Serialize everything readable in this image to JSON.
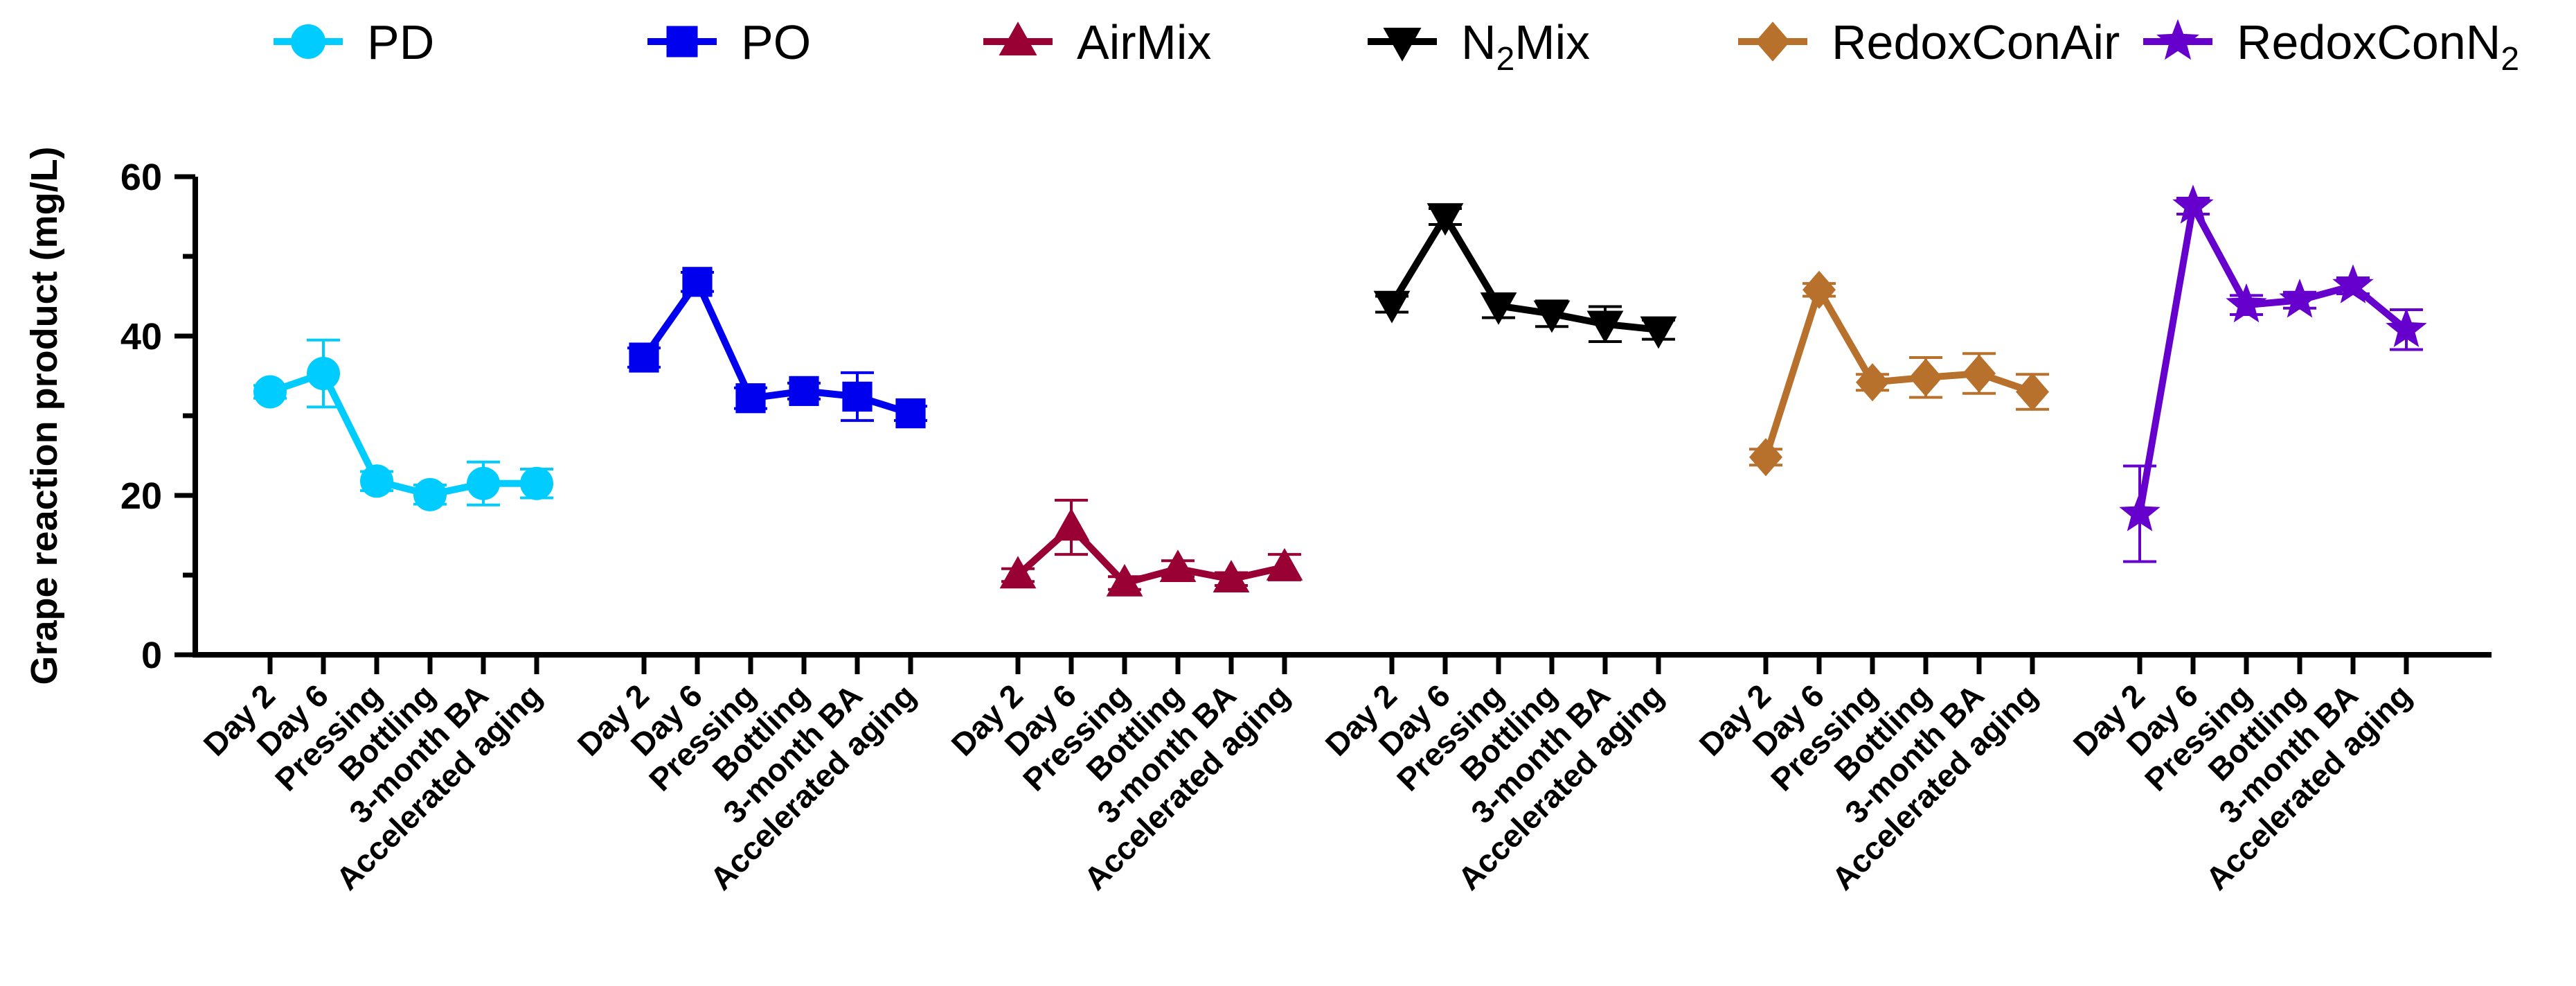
{
  "chart_data": {
    "type": "line",
    "ylabel": "Grape reaction product (mg/L)",
    "ylim": [
      0,
      60
    ],
    "y_ticks": [
      "0",
      "20",
      "40",
      "60"
    ],
    "grid": false,
    "legend_position": "top",
    "categories": [
      "Day 2",
      "Day 6",
      "Pressing",
      "Bottling",
      "3-month BA",
      "Accelerated aging"
    ],
    "series": [
      {
        "name": "PD",
        "label_main": "PD",
        "label_sub": "",
        "label_tail": "",
        "color": "#00CCFF",
        "marker": "circle",
        "values": [
          33,
          35.3,
          21.8,
          20.1,
          21.5,
          21.5
        ],
        "errors": [
          0.8,
          4.2,
          1.2,
          1.2,
          2.7,
          1.8
        ]
      },
      {
        "name": "PO",
        "label_main": "PO",
        "label_sub": "",
        "label_tail": "",
        "color": "#0000EE",
        "marker": "square",
        "values": [
          37.3,
          46.8,
          32.2,
          33.1,
          32.4,
          30.3
        ],
        "errors": [
          1.2,
          1.2,
          1.3,
          1.0,
          3.0,
          0.9
        ]
      },
      {
        "name": "AirMix",
        "label_main": "AirMix",
        "label_sub": "",
        "label_tail": "",
        "color": "#990033",
        "marker": "triangle-up",
        "values": [
          10,
          16,
          9,
          10.8,
          9.5,
          11
        ],
        "errors": [
          0.8,
          3.4,
          0.8,
          1.0,
          0.8,
          1.6
        ]
      },
      {
        "name": "N2Mix",
        "label_main": "N",
        "label_sub": "2",
        "label_tail": "Mix",
        "color": "#000000",
        "marker": "triangle-down",
        "values": [
          44,
          55,
          43.8,
          42.8,
          41.5,
          40.8
        ],
        "errors": [
          1.0,
          1.0,
          1.5,
          1.6,
          2.2,
          1.2
        ]
      },
      {
        "name": "RedoxConAir",
        "label_main": "RedoxConAir",
        "label_sub": "",
        "label_tail": "",
        "color": "#B8702D",
        "marker": "diamond",
        "values": [
          24.8,
          45.8,
          34.2,
          34.8,
          35.3,
          33
        ],
        "errors": [
          1.0,
          0.8,
          1.0,
          2.5,
          2.5,
          2.2
        ]
      },
      {
        "name": "RedoxConN2",
        "label_main": "RedoxConN",
        "label_sub": "2",
        "label_tail": "",
        "color": "#6600CC",
        "marker": "star",
        "values": [
          17.7,
          56.3,
          43.9,
          44.5,
          46.3,
          40.8
        ],
        "errors": [
          6.0,
          1.0,
          1.2,
          1.0,
          1.0,
          2.5
        ]
      }
    ]
  }
}
